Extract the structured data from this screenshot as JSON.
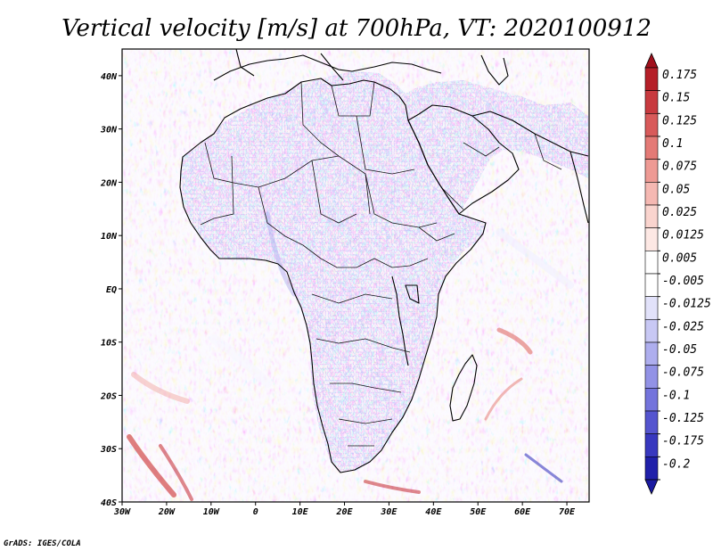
{
  "title": "Vertical velocity [m/s] at 700hPa, VT: 2020100912",
  "credit": "GrADS: IGES/COLA",
  "map": {
    "variable": "Vertical velocity",
    "units": "m/s",
    "level": "700hPa",
    "valid_time": "2020100912",
    "lon_range": [
      -30,
      75
    ],
    "lat_range": [
      -40,
      45
    ],
    "x_ticks": [
      {
        "value": -30,
        "label": "30W"
      },
      {
        "value": -20,
        "label": "20W"
      },
      {
        "value": -10,
        "label": "10W"
      },
      {
        "value": 0,
        "label": "0"
      },
      {
        "value": 10,
        "label": "10E"
      },
      {
        "value": 20,
        "label": "20E"
      },
      {
        "value": 30,
        "label": "30E"
      },
      {
        "value": 40,
        "label": "40E"
      },
      {
        "value": 50,
        "label": "50E"
      },
      {
        "value": 60,
        "label": "60E"
      },
      {
        "value": 70,
        "label": "70E"
      }
    ],
    "y_ticks": [
      {
        "value": 40,
        "label": "40N"
      },
      {
        "value": 30,
        "label": "30N"
      },
      {
        "value": 20,
        "label": "20N"
      },
      {
        "value": 10,
        "label": "10N"
      },
      {
        "value": 0,
        "label": "EQ"
      },
      {
        "value": -10,
        "label": "10S"
      },
      {
        "value": -20,
        "label": "20S"
      },
      {
        "value": -30,
        "label": "30S"
      },
      {
        "value": -40,
        "label": "40S"
      }
    ]
  },
  "colorbar": {
    "levels": [
      {
        "label": "0.175",
        "color": "#b51f28"
      },
      {
        "label": "0.15",
        "color": "#c83a3f"
      },
      {
        "label": "0.125",
        "color": "#d85a5a"
      },
      {
        "label": "0.1",
        "color": "#e47a76"
      },
      {
        "label": "0.075",
        "color": "#ee9a94"
      },
      {
        "label": "0.05",
        "color": "#f5b8b2"
      },
      {
        "label": "0.025",
        "color": "#fad4ce"
      },
      {
        "label": "0.0125",
        "color": "#fde8e4"
      },
      {
        "label": "0.005",
        "color": "#ffffff"
      },
      {
        "label": "-0.005",
        "color": "#ffffff"
      },
      {
        "label": "-0.0125",
        "color": "#e2e2fa"
      },
      {
        "label": "-0.025",
        "color": "#c8c8f4"
      },
      {
        "label": "-0.05",
        "color": "#aeaeee"
      },
      {
        "label": "-0.075",
        "color": "#9292e6"
      },
      {
        "label": "-0.1",
        "color": "#7474dc"
      },
      {
        "label": "-0.125",
        "color": "#5555cf"
      },
      {
        "label": "-0.175",
        "color": "#3838bf"
      },
      {
        "label": "-0.2",
        "color": "#2020aa"
      }
    ],
    "top_color": "#a0101c",
    "bottom_color": "#1a1aa0"
  }
}
